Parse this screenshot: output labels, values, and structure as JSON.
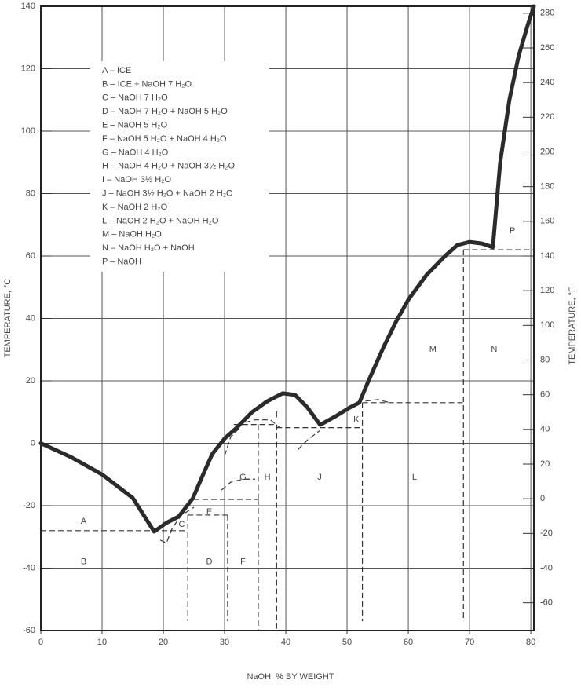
{
  "chart_data": {
    "type": "line",
    "xlabel": "NaOH, % BY WEIGHT",
    "ylabel": "TEMPERATURE, °C",
    "y2label": "TEMPERATURE, °F",
    "xlim": [
      0,
      80.5
    ],
    "ylim": [
      -60,
      140
    ],
    "y2lim": [
      -76,
      284
    ],
    "xticks": [
      0,
      10,
      20,
      30,
      40,
      50,
      60,
      70,
      80
    ],
    "yticks": [
      -60,
      -40,
      -20,
      0,
      20,
      40,
      60,
      80,
      100,
      120,
      140
    ],
    "y2ticks": [
      -60,
      -40,
      -20,
      0,
      20,
      40,
      60,
      80,
      100,
      120,
      140,
      160,
      180,
      200,
      220,
      240,
      260,
      280
    ],
    "grid": true,
    "x": [
      0,
      5,
      10,
      15,
      18.5,
      20.5,
      22.5,
      24.8,
      26.5,
      28,
      30,
      32,
      34.5,
      37,
      39.5,
      41.5,
      43.5,
      45.6,
      48,
      50.5,
      52,
      53.5,
      56,
      58,
      60,
      63,
      66,
      68,
      70,
      72,
      73.8,
      75,
      76.5,
      78,
      79.5,
      80.5
    ],
    "series": [
      {
        "color": "#2b2b2b",
        "values": [
          0,
          -4.5,
          -10,
          -17.5,
          -28.3,
          -25.5,
          -23.5,
          -17.7,
          -10,
          -3.4,
          1.5,
          5,
          10,
          13.5,
          16,
          15.5,
          11.5,
          5.9,
          8.5,
          11.5,
          13,
          20,
          31,
          39,
          46,
          54,
          60,
          63.5,
          64.5,
          64,
          62.8,
          90,
          110,
          124,
          134,
          140
        ]
      }
    ],
    "dashed_lines": [
      {
        "x": [
          0,
          24
        ],
        "y": [
          -28,
          -28
        ]
      },
      {
        "x": [
          24,
          24
        ],
        "y": [
          -23,
          -57
        ]
      },
      {
        "x": [
          19.5,
          20.5,
          21.5,
          23,
          25
        ],
        "y": [
          -31,
          -32,
          -27,
          -23,
          -20.5
        ]
      },
      {
        "x": [
          24,
          30.5
        ],
        "y": [
          -23,
          -23
        ]
      },
      {
        "x": [
          30.5,
          30.5
        ],
        "y": [
          -23,
          -57
        ]
      },
      {
        "x": [
          25,
          35.5
        ],
        "y": [
          -18,
          -18
        ]
      },
      {
        "x": [
          35.5,
          35.5
        ],
        "y": [
          -18,
          -60
        ]
      },
      {
        "x": [
          29.5,
          31,
          33,
          35
        ],
        "y": [
          -15,
          -12.5,
          -11.5,
          -11.5
        ]
      },
      {
        "x": [
          30,
          31,
          32.5
        ],
        "y": [
          -4,
          2,
          5
        ]
      },
      {
        "x": [
          31.5,
          38.5
        ],
        "y": [
          6,
          6
        ]
      },
      {
        "x": [
          35.5,
          35.5
        ],
        "y": [
          6,
          -18
        ]
      },
      {
        "x": [
          38.5,
          38.5
        ],
        "y": [
          6,
          -60
        ]
      },
      {
        "x": [
          38.5,
          52.5
        ],
        "y": [
          5,
          5
        ]
      },
      {
        "x": [
          32,
          35,
          37.5,
          39
        ],
        "y": [
          6,
          7.5,
          7.5,
          5
        ]
      },
      {
        "x": [
          42,
          43.5,
          45.5
        ],
        "y": [
          -2,
          1,
          4
        ]
      },
      {
        "x": [
          52.5,
          52.5
        ],
        "y": [
          13,
          -57
        ]
      },
      {
        "x": [
          52.5,
          69
        ],
        "y": [
          13,
          13
        ]
      },
      {
        "x": [
          53,
          55,
          57
        ],
        "y": [
          13.5,
          14,
          13
        ]
      },
      {
        "x": [
          69,
          69
        ],
        "y": [
          62,
          -57
        ]
      },
      {
        "x": [
          69,
          80.5
        ],
        "y": [
          62,
          62
        ]
      }
    ],
    "region_labels": [
      {
        "label": "A",
        "x": 7,
        "y": -25
      },
      {
        "label": "B",
        "x": 7,
        "y": -38
      },
      {
        "label": "C",
        "x": 23,
        "y": -26
      },
      {
        "label": "D",
        "x": 27.5,
        "y": -38
      },
      {
        "label": "E",
        "x": 27.5,
        "y": -22
      },
      {
        "label": "F",
        "x": 33,
        "y": -38
      },
      {
        "label": "G",
        "x": 33,
        "y": -11
      },
      {
        "label": "H",
        "x": 37,
        "y": -11
      },
      {
        "label": "I",
        "x": 38.5,
        "y": 9
      },
      {
        "label": "J",
        "x": 45.5,
        "y": -11
      },
      {
        "label": "K",
        "x": 51.5,
        "y": 7.5
      },
      {
        "label": "L",
        "x": 61,
        "y": -11
      },
      {
        "label": "M",
        "x": 64,
        "y": 30
      },
      {
        "label": "N",
        "x": 74,
        "y": 30
      },
      {
        "label": "P",
        "x": 77,
        "y": 68
      }
    ],
    "legend_entries": [
      "A – ICE",
      "B – ICE + NaOH 7 H₂O",
      "C – NaOH 7 H₂O",
      "D – NaOH 7 H₂O + NaOH 5 H₂O",
      "E – NaOH 5 H₂O",
      "F – NaOH 5 H₂O + NaOH 4 H₂O",
      "G – NaOH 4 H₂O",
      "H – NaOH 4 H₂O + NaOH 3½ H₂O",
      "I – NaOH 3½ H₂O",
      "J – NaOH 3½ H₂O + NaOH 2 H₂O",
      "K – NaOH 2 H₂O",
      "L – NaOH 2 H₂O + NaOH H₂O",
      "M – NaOH H₂O",
      "N – NaOH H₂O + NaOH",
      "P – NaOH"
    ]
  }
}
